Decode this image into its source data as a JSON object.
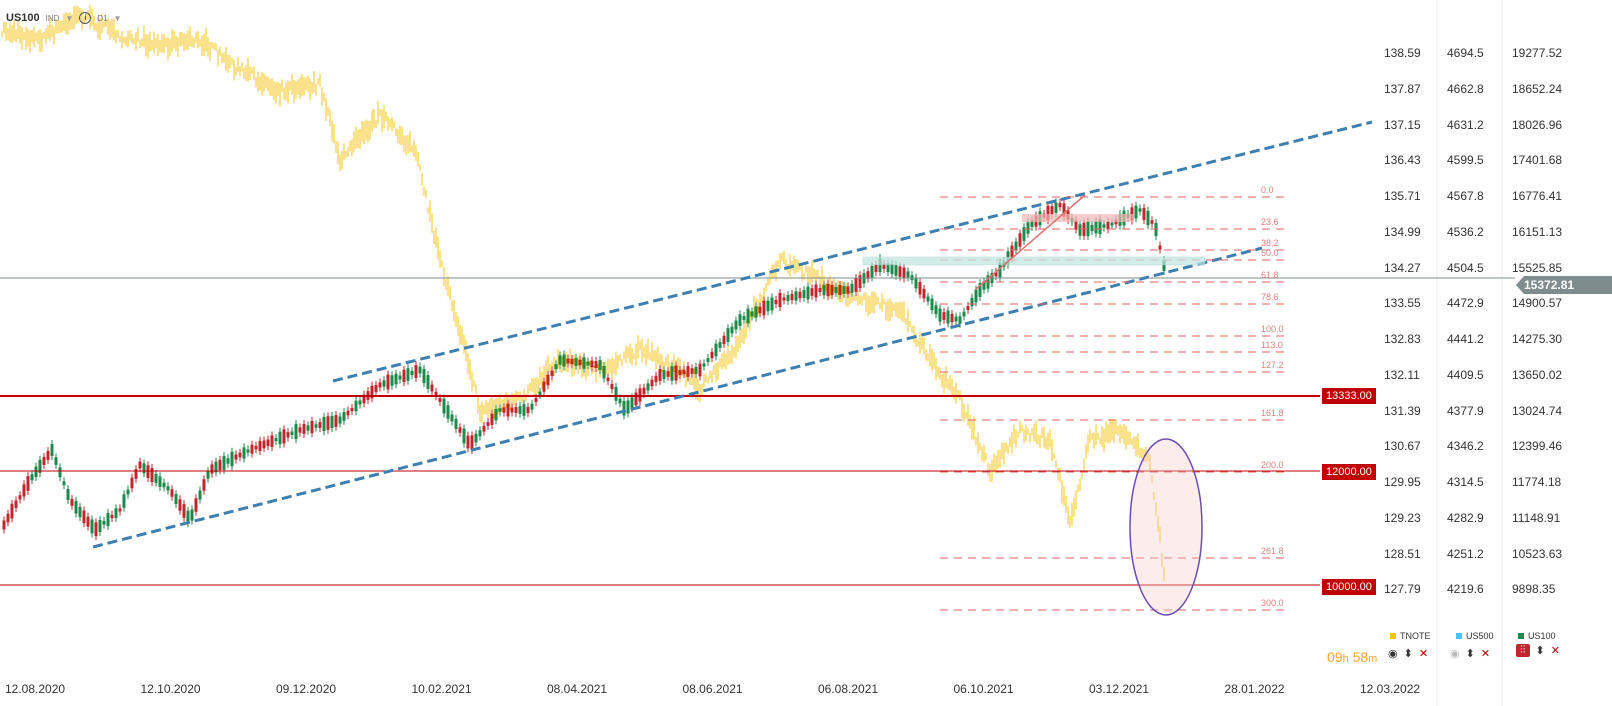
{
  "header": {
    "symbol": "US100",
    "market": "IND",
    "timeframe": "D1"
  },
  "axes": {
    "tnote": [
      "138.59",
      "137.87",
      "137.15",
      "136.43",
      "135.71",
      "134.99",
      "134.27",
      "133.55",
      "132.83",
      "132.11",
      "131.39",
      "130.67",
      "129.95",
      "129.23",
      "128.51",
      "127.79"
    ],
    "us500": [
      "4694.5",
      "4662.8",
      "4631.2",
      "4599.5",
      "4567.8",
      "4536.2",
      "4504.5",
      "4472.9",
      "4441.2",
      "4409.5",
      "4377.9",
      "4346.2",
      "4314.5",
      "4282.9",
      "4251.2",
      "4219.6"
    ],
    "us100": [
      "19277.52",
      "18652.24",
      "18026.96",
      "17401.68",
      "16776.41",
      "16151.13",
      "15525.85",
      "14900.57",
      "14275.30",
      "13650.02",
      "13024.74",
      "12399.46",
      "11774.18",
      "11148.91",
      "10523.63",
      "9898.35"
    ]
  },
  "x_labels": [
    "12.08.2020",
    "12.10.2020",
    "09.12.2020",
    "10.02.2021",
    "08.04.2021",
    "08.06.2021",
    "06.08.2021",
    "06.10.2021",
    "03.12.2021",
    "28.01.2022",
    "12.03.2022"
  ],
  "levels": [
    {
      "label": "13333.00"
    },
    {
      "label": "12000.00"
    },
    {
      "label": "10000.00"
    }
  ],
  "fib": [
    "0.0",
    "23.6",
    "38.2",
    "50.0",
    "61.8",
    "78.6",
    "100.0",
    "113.0",
    "127.2",
    "161.8",
    "200.0",
    "261.8",
    "300.0"
  ],
  "current_price": "15372.81",
  "timer": {
    "h": "09",
    "h_unit": "h",
    "m": "58",
    "m_unit": "m"
  },
  "legend": [
    {
      "name": "TNOTE",
      "color": "#f5c518"
    },
    {
      "name": "US500",
      "color": "#4fc3f7"
    },
    {
      "name": "US100",
      "color": "#1b8a4b"
    }
  ],
  "colors": {
    "up": "#1b8a4b",
    "down": "#c0262d",
    "tnote": "#f5c518",
    "level": "#c00000",
    "channel": "#3d7fb0",
    "fib": "#e06060"
  }
}
